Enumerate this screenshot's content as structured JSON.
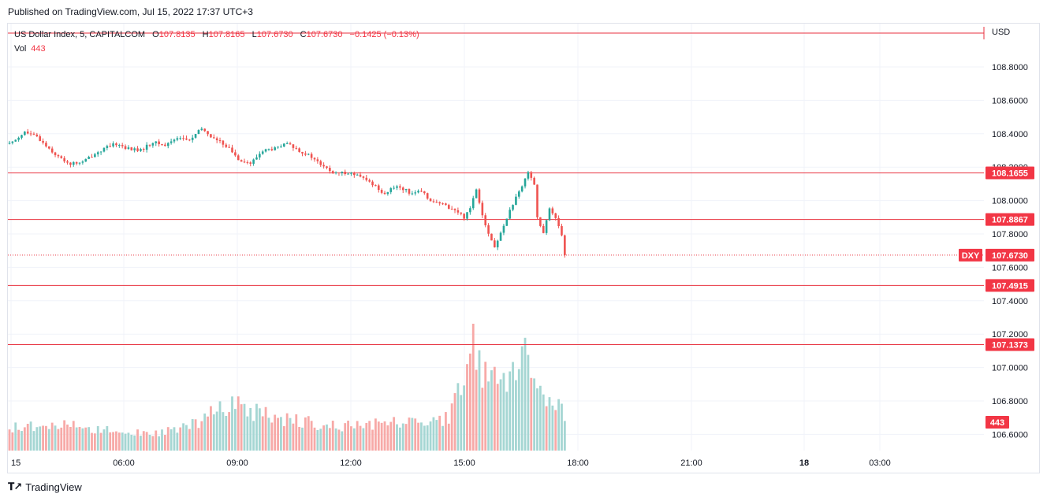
{
  "header": {
    "published": "Published on TradingView.com, Jul 15, 2022 17:37 UTC+3"
  },
  "legend": {
    "symbol": "US Dollar Index, 5, CAPITALCOM",
    "o_label": "O",
    "o": "107.8135",
    "h_label": "H",
    "h": "107.8165",
    "l_label": "L",
    "l": "107.6730",
    "c_label": "C",
    "c": "107.6730",
    "change": "−0.1425 (−0.13%)",
    "vol_label": "Vol",
    "vol": "443"
  },
  "axis": {
    "currency": "USD"
  },
  "footer": {
    "brand": "TradingView"
  },
  "colors": {
    "up": "#26a69a",
    "down": "#ef5350",
    "level_line": "#e8323f",
    "label_bg": "#f23645",
    "grid": "#f0f3fa"
  },
  "chart_data": {
    "type": "candlestick",
    "symbol": "DXY",
    "timeframe": "5",
    "y_ticks": [
      "108.8000",
      "108.6000",
      "108.4000",
      "108.2000",
      "108.0000",
      "107.8000",
      "107.6000",
      "107.4000",
      "107.2000",
      "107.0000",
      "106.8000",
      "106.6000"
    ],
    "x_ticks": [
      "15",
      "06:00",
      "09:00",
      "12:00",
      "15:00",
      "18:00",
      "21:00",
      "18",
      "03:00"
    ],
    "ylim": [
      106.53,
      109.0
    ],
    "horizontal_levels": [
      {
        "value": 108.1655,
        "label": "108.1655"
      },
      {
        "value": 107.8867,
        "label": "107.8867"
      },
      {
        "value": 107.4915,
        "label": "107.4915"
      },
      {
        "value": 107.1373,
        "label": "107.1373"
      }
    ],
    "top_line": 109.02,
    "last_price": {
      "value": 107.673,
      "label": "107.6730",
      "tag": "DXY"
    },
    "volume_last": {
      "value": 443,
      "label": "443"
    },
    "path_points": [
      [
        0,
        108.34
      ],
      [
        5,
        108.41
      ],
      [
        9,
        108.38
      ],
      [
        12,
        108.33
      ],
      [
        16,
        108.26
      ],
      [
        20,
        108.22
      ],
      [
        24,
        108.23
      ],
      [
        27,
        108.27
      ],
      [
        31,
        108.31
      ],
      [
        35,
        108.34
      ],
      [
        39,
        108.31
      ],
      [
        43,
        108.3
      ],
      [
        47,
        108.35
      ],
      [
        51,
        108.33
      ],
      [
        55,
        108.38
      ],
      [
        59,
        108.36
      ],
      [
        63,
        108.43
      ],
      [
        67,
        108.37
      ],
      [
        71,
        108.33
      ],
      [
        75,
        108.25
      ],
      [
        79,
        108.22
      ],
      [
        83,
        108.3
      ],
      [
        87,
        108.31
      ],
      [
        91,
        108.34
      ],
      [
        95,
        108.3
      ],
      [
        99,
        108.26
      ],
      [
        103,
        108.2
      ],
      [
        107,
        108.16
      ],
      [
        111,
        108.17
      ],
      [
        115,
        108.14
      ],
      [
        119,
        108.1
      ],
      [
        123,
        108.04
      ],
      [
        127,
        108.09
      ],
      [
        131,
        108.05
      ],
      [
        135,
        108.05
      ],
      [
        139,
        107.99
      ],
      [
        143,
        107.97
      ],
      [
        147,
        107.93
      ],
      [
        149,
        107.9
      ],
      [
        151,
        107.96
      ],
      [
        153,
        108.07
      ],
      [
        155,
        107.92
      ],
      [
        157,
        107.8
      ],
      [
        159,
        107.72
      ],
      [
        161,
        107.8
      ],
      [
        163,
        107.9
      ],
      [
        165,
        107.98
      ],
      [
        168,
        108.08
      ],
      [
        170,
        108.18
      ],
      [
        172,
        108.1
      ],
      [
        173,
        107.9
      ],
      [
        175,
        107.8
      ],
      [
        177,
        107.95
      ],
      [
        179,
        107.9
      ],
      [
        181,
        107.8
      ],
      [
        182,
        107.67
      ]
    ],
    "volume_points": [
      [
        0,
        90
      ],
      [
        12,
        120
      ],
      [
        24,
        95
      ],
      [
        36,
        80
      ],
      [
        48,
        70
      ],
      [
        60,
        110
      ],
      [
        72,
        200
      ],
      [
        84,
        150
      ],
      [
        96,
        120
      ],
      [
        108,
        100
      ],
      [
        120,
        110
      ],
      [
        132,
        120
      ],
      [
        144,
        140
      ],
      [
        152,
        440
      ],
      [
        156,
        310
      ],
      [
        164,
        290
      ],
      [
        170,
        410
      ],
      [
        175,
        250
      ],
      [
        182,
        150
      ]
    ]
  }
}
